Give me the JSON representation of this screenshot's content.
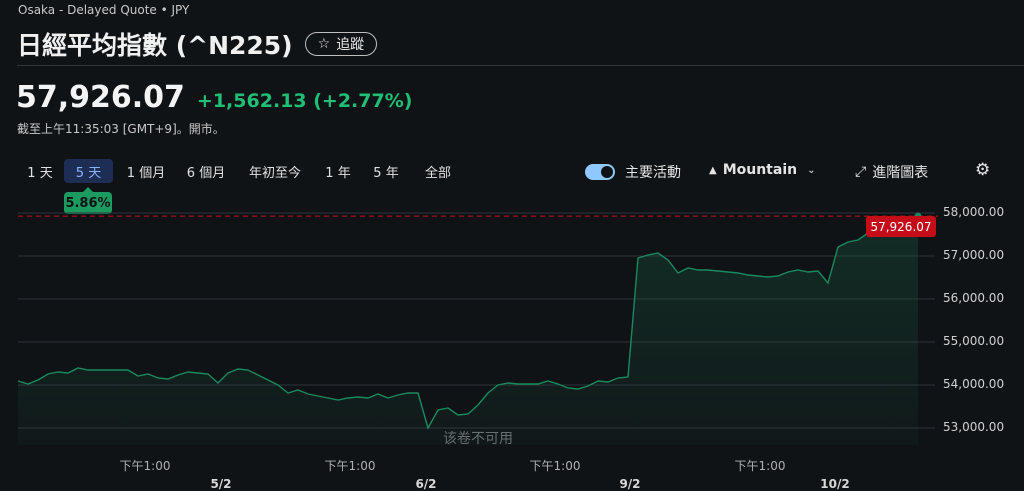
{
  "header": {
    "exchange": "Osaka - Delayed Quote • JPY",
    "title": "日經平均指數 (^N225)",
    "follow_icon": "star-outline",
    "follow_label": "追蹤"
  },
  "quote": {
    "price": "57,926.07",
    "change": "+1,562.13",
    "change_pct": "(+2.77%)",
    "as_of": "截至上午11:35:03 [GMT+9]。開市。"
  },
  "ranges": [
    {
      "label": "1 天"
    },
    {
      "label": "5 天",
      "active": true
    },
    {
      "label": "1 個月"
    },
    {
      "label": "6 個月"
    },
    {
      "label": "年初至今"
    },
    {
      "label": "1 年"
    },
    {
      "label": "5 年"
    },
    {
      "label": "全部"
    }
  ],
  "range_change": "5.86%",
  "toolbar": {
    "key_events_label": "主要活動",
    "key_events_on": true,
    "chart_type": "Mountain",
    "advanced_label": "進階圖表",
    "settings_icon": "gear"
  },
  "colors": {
    "line": "#1a8a5e",
    "positive": "#1fbf75",
    "price_tag": "#c50d1a",
    "active_range": "#1e2d53"
  },
  "chart_data": {
    "type": "area",
    "current_price_label": "57,926.07",
    "current_price": 57926.07,
    "ylim": [
      52500,
      58000
    ],
    "yticks": [
      {
        "v": 58000,
        "label": "58,000.00"
      },
      {
        "v": 57000,
        "label": "57,000.00"
      },
      {
        "v": 56000,
        "label": "56,000.00"
      },
      {
        "v": 55000,
        "label": "55,000.00"
      },
      {
        "v": 54000,
        "label": "54,000.00"
      },
      {
        "v": 53000,
        "label": "53,000.00"
      }
    ],
    "xticks_time": [
      "下午1:00",
      "下午1:00",
      "下午1:00",
      "下午1:00"
    ],
    "xticks_date": [
      "5/2",
      "6/2",
      "9/2",
      "10/2"
    ],
    "volume_note": "该卷不可用",
    "grid": true,
    "values": [
      54093,
      54023,
      54116,
      54255,
      54302,
      54279,
      54395,
      54349,
      54349,
      54349,
      54349,
      54349,
      54209,
      54255,
      54162,
      54139,
      54232,
      54302,
      54279,
      54255,
      54046,
      54279,
      54372,
      54349,
      54232,
      54116,
      54000,
      53814,
      53883,
      53790,
      53744,
      53697,
      53651,
      53697,
      53720,
      53697,
      53790,
      53697,
      53767,
      53814,
      53814,
      53000,
      53418,
      53465,
      53302,
      53325,
      53534,
      53814,
      54000,
      54046,
      54023,
      54023,
      54023,
      54093,
      54023,
      53930,
      53906,
      53976,
      54093,
      54069,
      54162,
      54186,
      56953,
      57023,
      57070,
      56907,
      56604,
      56721,
      56674,
      56674,
      56651,
      56628,
      56604,
      56558,
      56535,
      56511,
      56535,
      56628,
      56674,
      56628,
      56651,
      56372,
      57209,
      57325,
      57372,
      57535,
      57698,
      57884,
      57698,
      57791,
      57926
    ]
  }
}
